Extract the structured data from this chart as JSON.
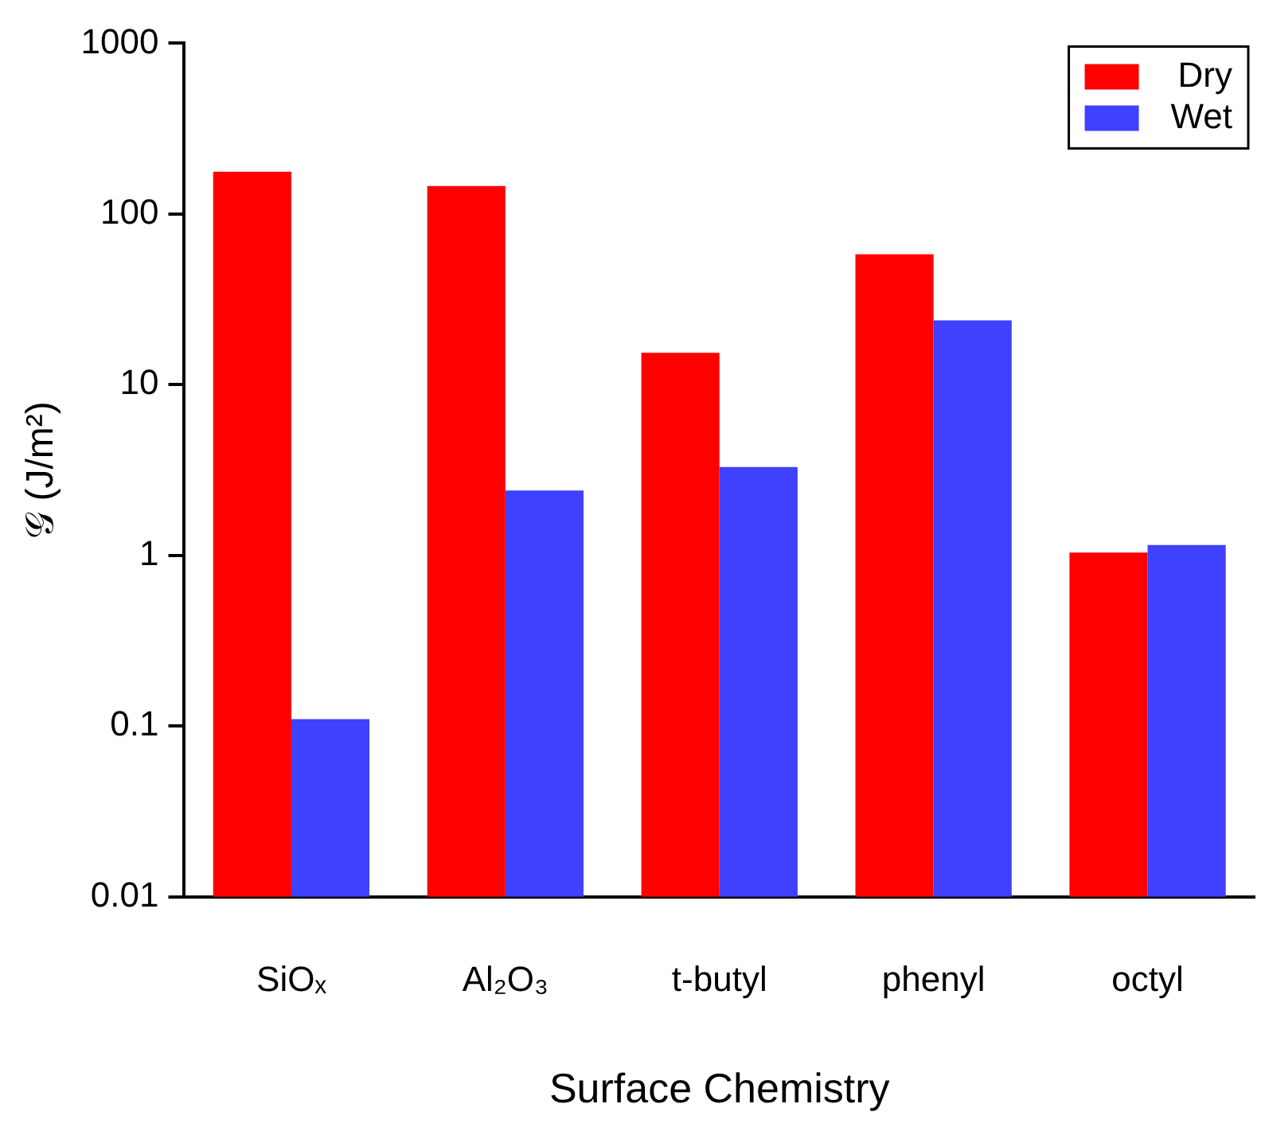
{
  "chart_data": {
    "type": "bar",
    "xlabel": "Surface Chemistry",
    "ylabel": "𝒢 (J/m²)",
    "categories": [
      "SiOₓ",
      "Al₂O₃",
      "t-butyl",
      "phenyl",
      "octyl"
    ],
    "series": [
      {
        "name": "Dry",
        "color": "#ff0000",
        "values": [
          177,
          146,
          15.4,
          58,
          1.04
        ]
      },
      {
        "name": "Wet",
        "color": "#4040ff",
        "values": [
          0.11,
          2.4,
          3.3,
          23.8,
          1.15
        ]
      }
    ],
    "log": "y",
    "ylim": [
      0.01,
      1000
    ],
    "yticks": [
      0.01,
      0.1,
      1,
      10,
      100,
      1000
    ],
    "grid": false,
    "legend": "top right"
  }
}
